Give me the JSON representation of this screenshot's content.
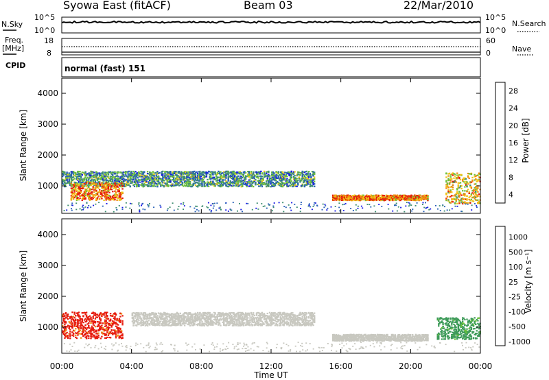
{
  "header": {
    "station": "Syowa East (fitACF)",
    "beam": "Beam 03",
    "date": "22/Mar/2010"
  },
  "status_panel": {
    "nsky_label": "N.Sky",
    "nsky_top": "10^5",
    "nsky_bottom": "10^0",
    "nsearch_label": "N.Search",
    "nsearch_top": "10^5",
    "nsearch_bottom": "10^0",
    "freq_label": "Freq.",
    "freq_unit": "[MHz]",
    "freq_top": "18",
    "freq_bottom": "8",
    "nave_label": "Nave",
    "nave_top": "60",
    "nave_bottom": "0",
    "cpid_label": "CPID",
    "cpid_value": "normal (fast) 151"
  },
  "chart_data": [
    {
      "type": "heatmap",
      "name": "power",
      "ylabel": "Slant Range [km]",
      "yticks": [
        "1000",
        "2000",
        "3000",
        "4000"
      ],
      "ylim": [
        180,
        4500
      ],
      "colorbar_label": "Power [dB]",
      "colorbar_ticks": [
        "4",
        "8",
        "12",
        "16",
        "20",
        "24",
        "28"
      ],
      "colorbar_colors": [
        "#1a1ae6",
        "#2a62b8",
        "#3f8e72",
        "#6fc03c",
        "#f0c418",
        "#f08a0c",
        "#e61a0c"
      ],
      "echo_bands": [
        {
          "t_start": 0.0,
          "t_end": 14.5,
          "range_center": 1300,
          "range_width": 350,
          "level": 12
        },
        {
          "t_start": 0.5,
          "t_end": 3.5,
          "range_center": 900,
          "range_width": 400,
          "level": 24
        },
        {
          "t_start": 15.5,
          "t_end": 21.0,
          "range_center": 700,
          "range_width": 120,
          "level": 24
        },
        {
          "t_start": 22.0,
          "t_end": 24.0,
          "range_center": 1000,
          "range_width": 700,
          "level": 20
        }
      ]
    },
    {
      "type": "heatmap",
      "name": "velocity",
      "ylabel": "Slant Range [km]",
      "yticks": [
        "1000",
        "2000",
        "3000",
        "4000"
      ],
      "ylim": [
        180,
        4500
      ],
      "xlabel": "Time UT",
      "xticks": [
        "00:00",
        "04:00",
        "08:00",
        "12:00",
        "16:00",
        "20:00",
        "00:00"
      ],
      "xlim": [
        0,
        24
      ],
      "colorbar_label": "Velocity [m s⁻¹]",
      "colorbar_ticks": [
        "1000",
        "500",
        "100",
        "25",
        "-25",
        "-100",
        "-500",
        "-1000"
      ],
      "colorbar_colors": [
        "#1a30c8",
        "#2a6e9a",
        "#3c9a58",
        "#6cc43a",
        "#c8c8c0",
        "#f0bc1c",
        "#f08a0c",
        "#e61a0c"
      ],
      "echo_bands": [
        {
          "t_start": 0.0,
          "t_end": 3.5,
          "range_center": 1100,
          "range_width": 600,
          "level": -500
        },
        {
          "t_start": 4.0,
          "t_end": 14.5,
          "range_center": 1300,
          "range_width": 300,
          "level": 0
        },
        {
          "t_start": 15.5,
          "t_end": 21.0,
          "range_center": 700,
          "range_width": 150,
          "level": 0
        },
        {
          "t_start": 21.5,
          "t_end": 24.0,
          "range_center": 1000,
          "range_width": 500,
          "level": 100
        }
      ]
    }
  ]
}
